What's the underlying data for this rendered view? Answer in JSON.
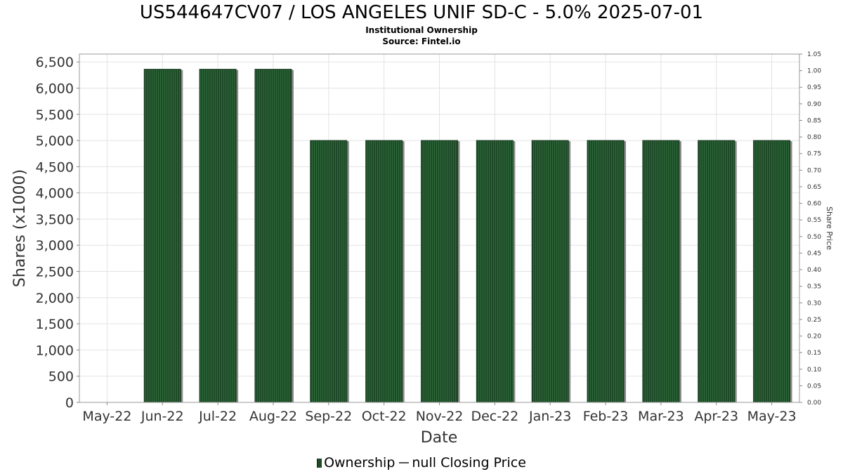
{
  "header": {
    "title": "US544647CV07 / LOS ANGELES UNIF SD-C - 5.0% 2025-07-01",
    "subtitle1": "Institutional Ownership",
    "subtitle2": "Source: Fintel.io"
  },
  "legend": {
    "ownership_label": "Ownership",
    "price_label": "null Closing Price"
  },
  "colors": {
    "bar_fill": "#1e4a28",
    "bar_stripe": "#2f6b3a",
    "bar_shadow": "#8a8a8a",
    "grid": "#e3e3e3"
  },
  "chart_data": {
    "type": "bar",
    "title": "US544647CV07 / LOS ANGELES UNIF SD-C - 5.0% 2025-07-01",
    "xlabel": "Date",
    "ylabel": "Shares (x1000)",
    "y2label": "Share Price",
    "x_ticks": [
      "May-22",
      "Jun-22",
      "Jul-22",
      "Aug-22",
      "Sep-22",
      "Oct-22",
      "Nov-22",
      "Dec-22",
      "Jan-23",
      "Feb-23",
      "Mar-23",
      "Apr-23",
      "May-23"
    ],
    "categories": [
      "Jun-22",
      "Jul-22",
      "Aug-22",
      "Sep-22",
      "Oct-22",
      "Nov-22",
      "Dec-22",
      "Jan-23",
      "Feb-23",
      "Mar-23",
      "Apr-23",
      "May-23"
    ],
    "series": [
      {
        "name": "Ownership",
        "values": [
          6360,
          6360,
          6360,
          5000,
          5000,
          5000,
          5000,
          5000,
          5000,
          5000,
          5000,
          5000
        ]
      }
    ],
    "y_ticks": [
      "0",
      "500",
      "1,000",
      "1,500",
      "2,000",
      "2,500",
      "3,000",
      "3,500",
      "4,000",
      "4,500",
      "5,000",
      "5,500",
      "6,000",
      "6,500"
    ],
    "ylim": [
      0,
      6650
    ],
    "y2_ticks": [
      "0.00",
      "0.05",
      "0.10",
      "0.15",
      "0.20",
      "0.25",
      "0.30",
      "0.35",
      "0.40",
      "0.45",
      "0.50",
      "0.55",
      "0.60",
      "0.65",
      "0.70",
      "0.75",
      "0.80",
      "0.85",
      "0.90",
      "0.95",
      "1.00",
      "1.05"
    ],
    "y2lim": [
      0,
      1.05
    ],
    "grid": true,
    "legend_position": "bottom-center"
  }
}
